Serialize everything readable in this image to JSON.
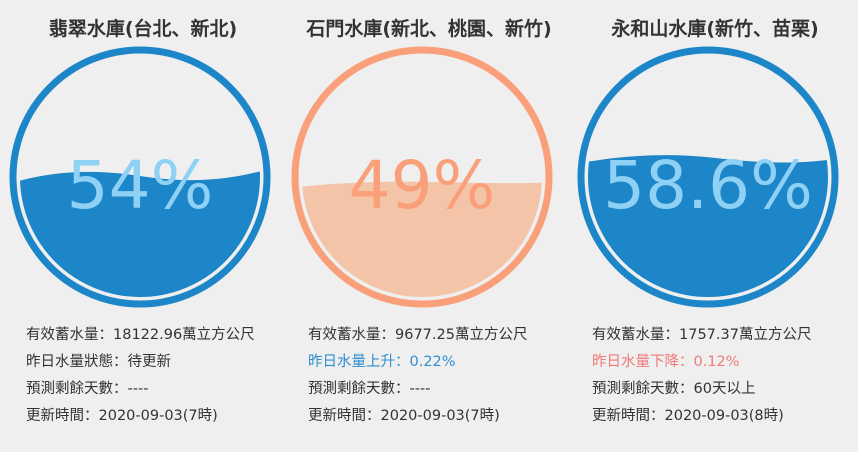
{
  "colors": {
    "blue": "#1c86c8",
    "blue_text": "#8fd0f5",
    "orange": "#f9a07a",
    "orange_fill": "#f4c4a8",
    "orange_text": "#f9a07a",
    "rise_text": "#2f8fcf",
    "fall_text": "#ef7a7a"
  },
  "reservoirs": [
    {
      "title": "翡翠水庫(台北、新北)",
      "percent_text": "54%",
      "percent_value": 54,
      "theme": "blue",
      "storage_label": "有效蓄水量：",
      "storage_value": "18122.96萬立方公尺",
      "change_label": "昨日水量狀態：",
      "change_value": "待更新",
      "forecast_label": "預測剩餘天數：",
      "forecast_value": "----",
      "updated_label": "更新時間：",
      "updated_value": "2020-09-03(7時)"
    },
    {
      "title": "石門水庫(新北、桃園、新竹)",
      "percent_text": "49%",
      "percent_value": 49,
      "theme": "orange",
      "storage_label": "有效蓄水量：",
      "storage_value": "9677.25萬立方公尺",
      "change_label": "昨日水量上升：",
      "change_value": "0.22%",
      "forecast_label": "預測剩餘天數：",
      "forecast_value": "----",
      "updated_label": "更新時間：",
      "updated_value": "2020-09-03(7時)"
    },
    {
      "title": "永和山水庫(新竹、苗栗)",
      "percent_text": "58.6%",
      "percent_value": 58.6,
      "theme": "blue",
      "storage_label": "有效蓄水量：",
      "storage_value": "1757.37萬立方公尺",
      "change_label": "昨日水量下降：",
      "change_value": "0.12%",
      "forecast_label": "預測剩餘天數：",
      "forecast_value": "60天以上",
      "updated_label": "更新時間：",
      "updated_value": "2020-09-03(8時)"
    }
  ]
}
